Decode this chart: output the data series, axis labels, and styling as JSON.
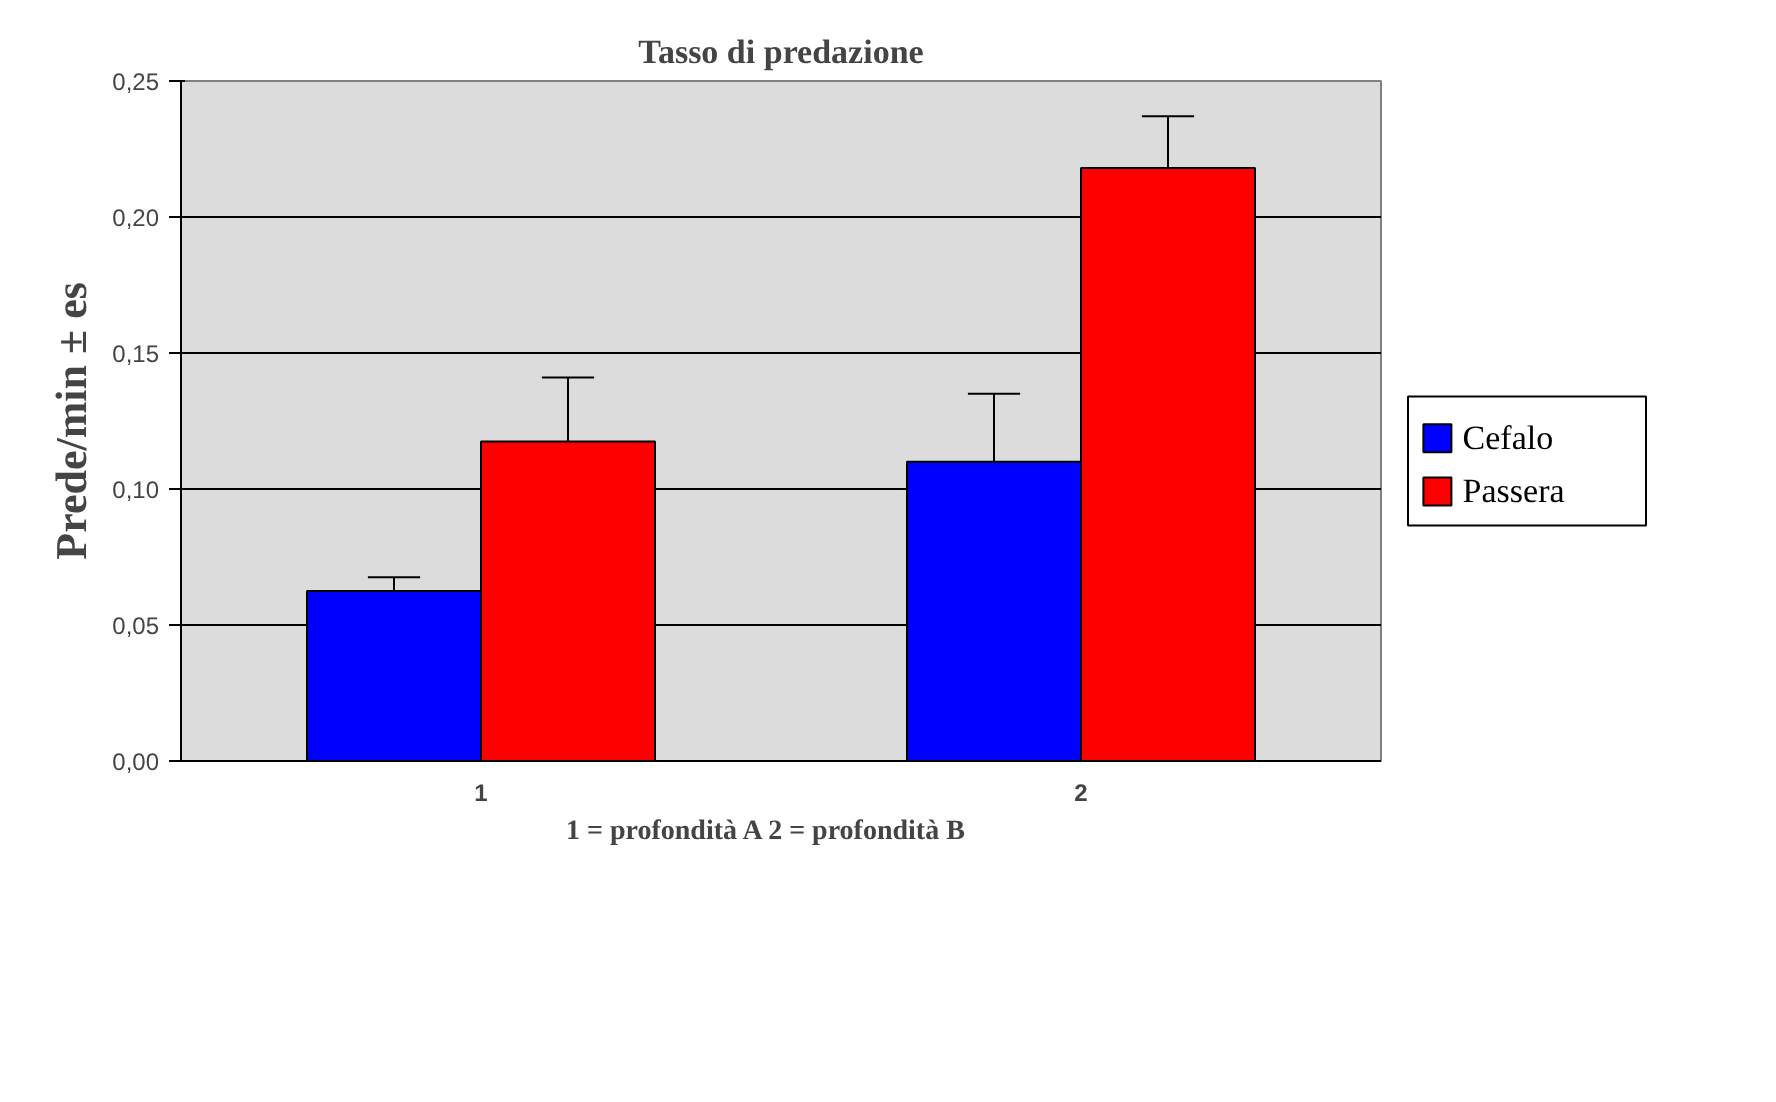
{
  "chart_data": {
    "type": "bar",
    "title": "Tasso di predazione",
    "xlabel": "1 = profondità A     2 = profondità B",
    "ylabel": "Prede/min ± es",
    "categories": [
      "1",
      "2"
    ],
    "series": [
      {
        "name": "Cefalo",
        "color": "#0000ff",
        "values": [
          0.0625,
          0.11
        ],
        "errors": [
          [
            0.0625,
            0.0676
          ],
          [
            0.11,
            0.135
          ]
        ]
      },
      {
        "name": "Passera",
        "color": "#ff0000",
        "values": [
          0.1175,
          0.218
        ],
        "errors": [
          [
            0.1175,
            0.141
          ],
          [
            0.218,
            0.237
          ]
        ]
      }
    ],
    "ylim": [
      0,
      0.25
    ],
    "yticks": [
      {
        "value": 0,
        "label": "0,00"
      },
      {
        "value": 0.05,
        "label": "0,05"
      },
      {
        "value": 0.1,
        "label": "0,10"
      },
      {
        "value": 0.15,
        "label": "0,15"
      },
      {
        "value": 0.2,
        "label": "0,20"
      },
      {
        "value": 0.25,
        "label": "0,25"
      }
    ],
    "grid": "y",
    "legend": "right"
  }
}
